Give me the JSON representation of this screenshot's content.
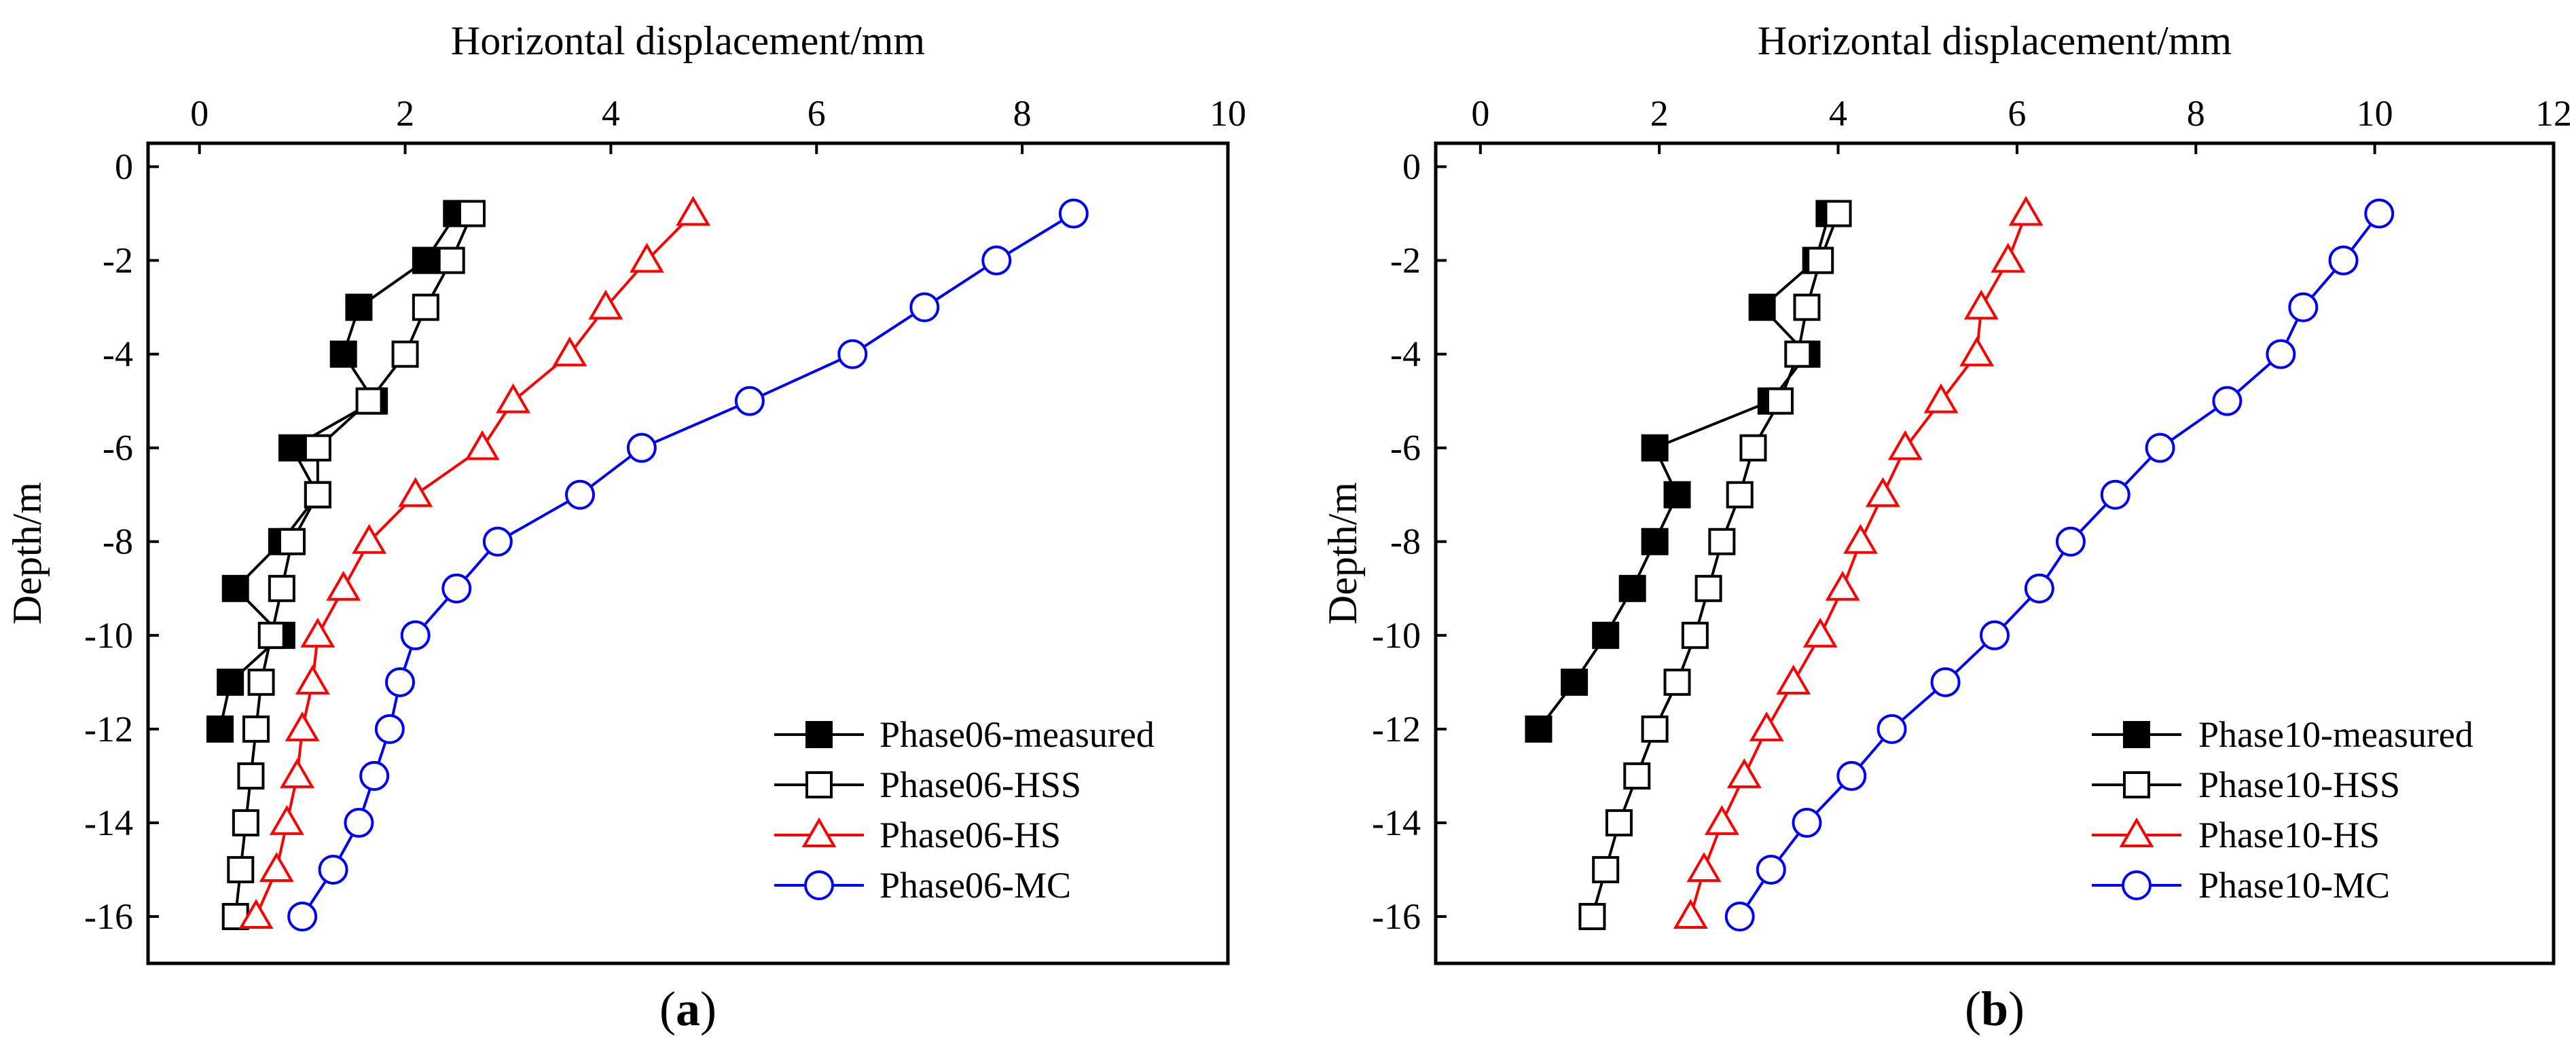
{
  "chart_data": [
    {
      "type": "line",
      "panel_label": "a",
      "title": "",
      "xlabel": "Horizontal displacement/mm",
      "ylabel": "Depth/m",
      "xlim": [
        -0.5,
        10
      ],
      "ylim": [
        -17,
        0.5
      ],
      "xticks": [
        0,
        2,
        4,
        6,
        8,
        10
      ],
      "yticks": [
        0,
        -2,
        -4,
        -6,
        -8,
        -10,
        -12,
        -14,
        -16
      ],
      "x_axis_position": "top",
      "grid": false,
      "legend_position": "bottom-right",
      "series": [
        {
          "name": "Phase06-measured",
          "color": "#000000",
          "marker": "square-filled",
          "x": [
            2.5,
            2.2,
            1.55,
            1.4,
            1.7,
            0.9,
            1.15,
            0.8,
            0.35,
            0.8,
            0.3,
            0.2
          ],
          "y": [
            -1,
            -2,
            -3,
            -4,
            -5,
            -6,
            -7,
            -8,
            -9,
            -10,
            -11,
            -12
          ]
        },
        {
          "name": "Phase06-HSS",
          "color": "#000000",
          "marker": "square-open",
          "x": [
            2.65,
            2.45,
            2.2,
            2.0,
            1.65,
            1.15,
            1.15,
            0.9,
            0.8,
            0.7,
            0.6,
            0.55,
            0.5,
            0.45,
            0.4,
            0.35
          ],
          "y": [
            -1,
            -2,
            -3,
            -4,
            -5,
            -6,
            -7,
            -8,
            -9,
            -10,
            -11,
            -12,
            -13,
            -14,
            -15,
            -16
          ]
        },
        {
          "name": "Phase06-HS",
          "color": "#ff0000",
          "marker": "triangle-open",
          "x": [
            4.8,
            4.35,
            3.95,
            3.6,
            3.05,
            2.75,
            2.1,
            1.65,
            1.4,
            1.15,
            1.1,
            1.0,
            0.95,
            0.85,
            0.75,
            0.55
          ],
          "y": [
            -1,
            -2,
            -3,
            -4,
            -5,
            -6,
            -7,
            -8,
            -9,
            -10,
            -11,
            -12,
            -13,
            -14,
            -15,
            -16
          ]
        },
        {
          "name": "Phase06-MC",
          "color": "#0000ff",
          "marker": "circle-open",
          "x": [
            8.5,
            7.75,
            7.05,
            6.35,
            5.35,
            4.3,
            3.7,
            2.9,
            2.5,
            2.1,
            1.95,
            1.85,
            1.7,
            1.55,
            1.3,
            1.0
          ],
          "y": [
            -1,
            -2,
            -3,
            -4,
            -5,
            -6,
            -7,
            -8,
            -9,
            -10,
            -11,
            -12,
            -13,
            -14,
            -15,
            -16
          ]
        }
      ]
    },
    {
      "type": "line",
      "panel_label": "b",
      "title": "",
      "xlabel": "Horizontal displacement/mm",
      "ylabel": "Depth/m",
      "xlim": [
        -0.5,
        12
      ],
      "ylim": [
        -17,
        0.5
      ],
      "xticks": [
        0,
        2,
        4,
        6,
        8,
        10,
        12
      ],
      "yticks": [
        0,
        -2,
        -4,
        -6,
        -8,
        -10,
        -12,
        -14,
        -16
      ],
      "x_axis_position": "top",
      "grid": false,
      "legend_position": "bottom-right",
      "series": [
        {
          "name": "Phase10-measured",
          "color": "#000000",
          "marker": "square-filled",
          "x": [
            3.9,
            3.75,
            3.15,
            3.65,
            3.25,
            1.95,
            2.2,
            1.95,
            1.7,
            1.4,
            1.05,
            0.65
          ],
          "y": [
            -1,
            -2,
            -3,
            -4,
            -5,
            -6,
            -7,
            -8,
            -9,
            -10,
            -11,
            -12
          ]
        },
        {
          "name": "Phase10-HSS",
          "color": "#000000",
          "marker": "square-open",
          "x": [
            4.0,
            3.8,
            3.65,
            3.55,
            3.35,
            3.05,
            2.9,
            2.7,
            2.55,
            2.4,
            2.2,
            1.95,
            1.75,
            1.55,
            1.4,
            1.25
          ],
          "y": [
            -1,
            -2,
            -3,
            -4,
            -5,
            -6,
            -7,
            -8,
            -9,
            -10,
            -11,
            -12,
            -13,
            -14,
            -15,
            -16
          ]
        },
        {
          "name": "Phase10-HS",
          "color": "#ff0000",
          "marker": "triangle-open",
          "x": [
            6.1,
            5.9,
            5.6,
            5.55,
            5.15,
            4.75,
            4.5,
            4.25,
            4.05,
            3.8,
            3.5,
            3.2,
            2.95,
            2.7,
            2.5,
            2.35
          ],
          "y": [
            -1,
            -2,
            -3,
            -4,
            -5,
            -6,
            -7,
            -8,
            -9,
            -10,
            -11,
            -12,
            -13,
            -14,
            -15,
            -16
          ]
        },
        {
          "name": "Phase10-MC",
          "color": "#0000ff",
          "marker": "circle-open",
          "x": [
            10.05,
            9.65,
            9.2,
            8.95,
            8.35,
            7.6,
            7.1,
            6.6,
            6.25,
            5.75,
            5.2,
            4.6,
            4.15,
            3.65,
            3.25,
            2.9
          ],
          "y": [
            -1,
            -2,
            -3,
            -4,
            -5,
            -6,
            -7,
            -8,
            -9,
            -10,
            -11,
            -12,
            -13,
            -14,
            -15,
            -16
          ]
        }
      ]
    }
  ]
}
